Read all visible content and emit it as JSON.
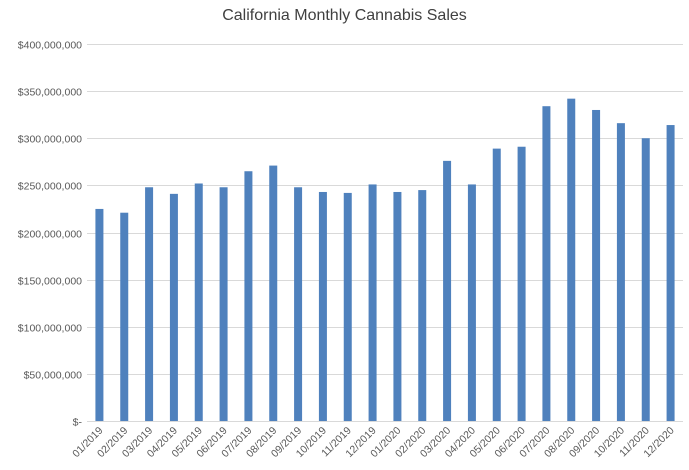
{
  "chart_data": {
    "type": "bar",
    "title": "California Monthly Cannabis Sales",
    "xlabel": "",
    "ylabel": "",
    "ylim": [
      0,
      400000000
    ],
    "grid": true,
    "bar_color": "#4F81BD",
    "yticks": [
      0,
      50000000,
      100000000,
      150000000,
      200000000,
      250000000,
      300000000,
      350000000,
      400000000
    ],
    "ytick_labels": [
      "$-",
      "$50,000,000",
      "$100,000,000",
      "$150,000,000",
      "$200,000,000",
      "$250,000,000",
      "$300,000,000",
      "$350,000,000",
      "$400,000,000"
    ],
    "categories": [
      "01/2019",
      "02/2019",
      "03/2019",
      "04/2019",
      "05/2019",
      "06/2019",
      "07/2019",
      "08/2019",
      "09/2019",
      "10/2019",
      "11/2019",
      "12/2019",
      "01/2020",
      "02/2020",
      "03/2020",
      "04/2020",
      "05/2020",
      "06/2020",
      "07/2020",
      "08/2020",
      "09/2020",
      "10/2020",
      "11/2020",
      "12/2020"
    ],
    "values": [
      225000000,
      221000000,
      248000000,
      241000000,
      252000000,
      248000000,
      265000000,
      271000000,
      248000000,
      243000000,
      242000000,
      251000000,
      243000000,
      245000000,
      276000000,
      251000000,
      289000000,
      291000000,
      334000000,
      342000000,
      330000000,
      316000000,
      300000000,
      314000000
    ]
  }
}
